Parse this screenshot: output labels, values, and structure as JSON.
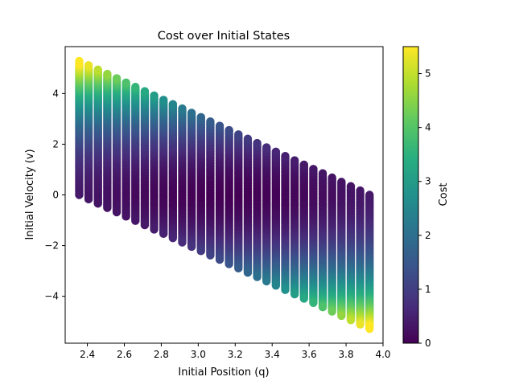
{
  "chart_data": {
    "type": "scatter",
    "title": "Cost over Initial States",
    "xlabel": "Initial Position (q)",
    "ylabel": "Initial Velocity (v)",
    "xlim": [
      2.28,
      4.0
    ],
    "ylim": [
      -5.85,
      5.85
    ],
    "x_ticks": [
      "2.4",
      "2.6",
      "2.8",
      "3.0",
      "3.2",
      "3.4",
      "3.6",
      "3.8",
      "4.0"
    ],
    "y_ticks": [
      "4",
      "2",
      "0",
      "−2",
      "−4"
    ],
    "x_tick_values": [
      2.4,
      2.6,
      2.8,
      3.0,
      3.2,
      3.4,
      3.6,
      3.8,
      4.0
    ],
    "y_tick_values": [
      4,
      2,
      0,
      -2,
      -4
    ],
    "q_range": [
      2.356,
      3.927
    ],
    "v_range": [
      -5.2,
      5.3
    ],
    "cost_center": [
      3.14,
      0.0
    ],
    "colormap": "viridis",
    "colorbar": {
      "label": "Cost",
      "range": [
        0,
        5.5
      ],
      "ticks": [
        "0",
        "1",
        "2",
        "3",
        "4",
        "5"
      ],
      "tick_values": [
        0,
        1,
        2,
        3,
        4,
        5
      ]
    },
    "grid": false
  }
}
